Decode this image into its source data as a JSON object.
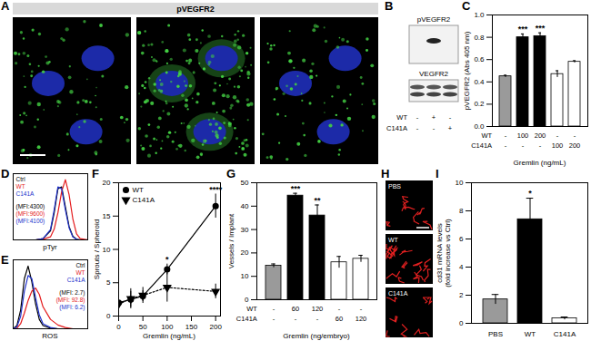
{
  "chart_data": [
    {
      "panel": "C",
      "type": "bar",
      "ylabel": "pVEGFR2 (Abs 405 nm)",
      "xlabel": "Gremlin (ng/mL)",
      "categories": [
        null,
        null,
        null,
        null,
        null
      ],
      "values": [
        0.45,
        0.8,
        0.81,
        0.47,
        0.58
      ],
      "errors": [
        0.01,
        0.03,
        0.03,
        0.03,
        0.01
      ],
      "colors": [
        "#9a9a9a",
        "#000000",
        "#000000",
        "#ffffff",
        "#ffffff"
      ],
      "stars": [
        null,
        "***",
        "***",
        null,
        null
      ],
      "condition_rows": [
        {
          "name": "WT",
          "labels": [
            "-",
            "100",
            "200",
            "-",
            "-"
          ]
        },
        {
          "name": "C141A",
          "labels": [
            "-",
            "-",
            "-",
            "100",
            "200"
          ]
        }
      ],
      "ylim": [
        0,
        1
      ],
      "yticks": [
        {
          "value": 0,
          "label": "0.0"
        },
        {
          "value": 0.2,
          "label": "0.2"
        },
        {
          "value": 0.4,
          "label": "0.4"
        },
        {
          "value": 0.6,
          "label": "0.6"
        },
        {
          "value": 0.8,
          "label": "0.8"
        },
        {
          "value": 1,
          "label": "1.0"
        }
      ]
    },
    {
      "panel": "D",
      "type": "density",
      "xlabel": "pTyr",
      "tick_labels": false,
      "legend": "top-left",
      "xlim": [
        0,
        100
      ],
      "ylim": [
        0,
        110
      ],
      "x": [
        0,
        10,
        20,
        30,
        40,
        50,
        55,
        60,
        65,
        70,
        75,
        80,
        85,
        90,
        100
      ],
      "series": [
        {
          "name": "Ctrl",
          "color": "#000000",
          "mfi_label": "(MFI:4300)",
          "values": [
            0,
            0,
            0,
            0,
            2,
            15,
            45,
            85,
            88,
            55,
            22,
            6,
            1,
            0,
            0
          ]
        },
        {
          "name": "WT",
          "color": "#e41a1c",
          "mfi_label": "(MFI:9600)",
          "values": [
            0,
            0,
            0,
            0,
            1,
            5,
            18,
            45,
            80,
            100,
            75,
            35,
            10,
            2,
            0
          ]
        },
        {
          "name": "C141A",
          "color": "#2233cc",
          "mfi_label": "(MFI:4100)",
          "values": [
            0,
            0,
            0,
            0,
            2,
            17,
            50,
            88,
            85,
            50,
            20,
            5,
            1,
            0,
            0
          ]
        }
      ]
    },
    {
      "panel": "E",
      "type": "density",
      "xlabel": "ROS",
      "tick_labels": false,
      "legend": "top-right",
      "xlim": [
        0,
        100
      ],
      "ylim": [
        0,
        110
      ],
      "x": [
        0,
        5,
        10,
        15,
        20,
        25,
        30,
        35,
        40,
        50,
        60,
        70,
        80,
        100
      ],
      "series": [
        {
          "name": "Ctrl",
          "color": "#000000",
          "mfi_label": "(MFI: 2.7)",
          "values": [
            0,
            5,
            30,
            80,
            100,
            75,
            40,
            15,
            5,
            1,
            0,
            0,
            0,
            0
          ]
        },
        {
          "name": "WT",
          "color": "#e41a1c",
          "mfi_label": "(MFI: 92.8)",
          "values": [
            0,
            1,
            8,
            25,
            45,
            60,
            65,
            55,
            35,
            15,
            6,
            2,
            0,
            0
          ]
        },
        {
          "name": "C141A",
          "color": "#2233cc",
          "mfi_label": "(MFI: 6.2)",
          "values": [
            0,
            3,
            20,
            60,
            85,
            80,
            50,
            22,
            8,
            2,
            0,
            0,
            0,
            0
          ]
        }
      ]
    },
    {
      "panel": "F",
      "type": "line",
      "xlabel": "Gremlin (ng/mL)",
      "ylabel": "Sprouts / Spheroid",
      "legend": "top-left",
      "x": [
        0,
        25,
        50,
        100,
        200
      ],
      "xlim": [
        0,
        210
      ],
      "xticks": [
        0,
        50,
        100,
        150,
        200
      ],
      "ylim": [
        0,
        20
      ],
      "yticks": [
        0,
        5,
        10,
        15,
        20
      ],
      "series": [
        {
          "name": "WT",
          "color": "#000000",
          "marker": "circle",
          "line_style": "solid",
          "values": [
            2,
            2.5,
            3,
            7,
            16.5
          ],
          "errors": [
            0.5,
            1.2,
            0.8,
            0.8,
            1.8
          ],
          "stars": [
            null,
            null,
            null,
            "*",
            "****"
          ]
        },
        {
          "name": "C141A",
          "color": "#000000",
          "marker": "triangle-down",
          "line_style": "dotted",
          "values": [
            1.8,
            2.6,
            3.1,
            4.3,
            3.7
          ],
          "errors": [
            0.8,
            1.5,
            1.2,
            2.2,
            1.1
          ]
        }
      ]
    },
    {
      "panel": "G",
      "type": "bar",
      "ylabel": "Vessels / Implant",
      "xlabel": "Gremlin (ng/embryo)",
      "categories": [
        null,
        null,
        null,
        null,
        null
      ],
      "values": [
        14.5,
        44.5,
        36,
        16,
        17.5
      ],
      "errors": [
        0.8,
        1,
        4.5,
        2.5,
        1.5
      ],
      "colors": [
        "#9a9a9a",
        "#000000",
        "#000000",
        "#ffffff",
        "#ffffff"
      ],
      "stars": [
        null,
        "***",
        "**",
        null,
        null
      ],
      "condition_rows": [
        {
          "name": "WT",
          "labels": [
            "-",
            "60",
            "120",
            "-",
            "-"
          ]
        },
        {
          "name": "C141A",
          "labels": [
            "-",
            "-",
            "-",
            "60",
            "120"
          ]
        }
      ],
      "ylim": [
        0,
        50
      ],
      "yticks": [
        0,
        10,
        20,
        30,
        40,
        50
      ]
    },
    {
      "panel": "I",
      "type": "bar",
      "ylabel": "cd31 mRNA levels\n(fold increase vs Ctrl)",
      "categories": [
        "PBS",
        "WT",
        "C141A"
      ],
      "values": [
        1.7,
        7.4,
        0.35
      ],
      "errors": [
        0.35,
        1.5,
        0.1
      ],
      "colors": [
        "#9a9a9a",
        "#000000",
        "#ffffff"
      ],
      "stars": [
        null,
        "*",
        null
      ],
      "ylim": [
        0,
        10
      ],
      "yticks": [
        0,
        2,
        4,
        6,
        8,
        10
      ]
    }
  ],
  "images": [
    {
      "panel": "A",
      "title": "pVEGFR2"
    },
    {
      "panel": "B",
      "bands": [
        "pVEGFR2",
        "VEGFR2"
      ],
      "rows": [
        {
          "name": "WT",
          "labels": [
            "-",
            "+",
            "-"
          ]
        },
        {
          "name": "C141A",
          "labels": [
            "-",
            "-",
            "+"
          ]
        }
      ]
    },
    {
      "panel": "H",
      "labels": [
        "PBS",
        "WT",
        "C141A"
      ]
    }
  ]
}
